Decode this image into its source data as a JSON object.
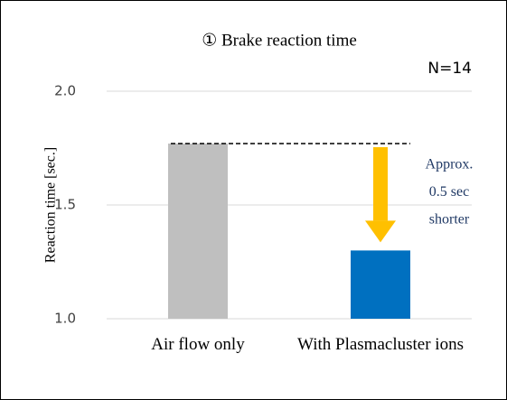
{
  "chart_data": {
    "type": "bar",
    "title": "① Brake reaction time",
    "subtitle": "N=14",
    "y_label": "Reaction time [sec.]",
    "categories": [
      "Air flow only",
      "With Plasmacluster ions"
    ],
    "values": [
      1.77,
      1.3
    ],
    "colors": [
      "#bfbfbf",
      "#0070c0"
    ],
    "ylim": [
      1.0,
      2.0
    ],
    "yticks": [
      {
        "value": 1.0,
        "label": "1.0"
      },
      {
        "value": 1.5,
        "label": "1.5"
      },
      {
        "value": 2.0,
        "label": "2.0"
      }
    ],
    "grid": true,
    "annotation": [
      "Approx.",
      "0.5 sec",
      "shorter"
    ]
  }
}
